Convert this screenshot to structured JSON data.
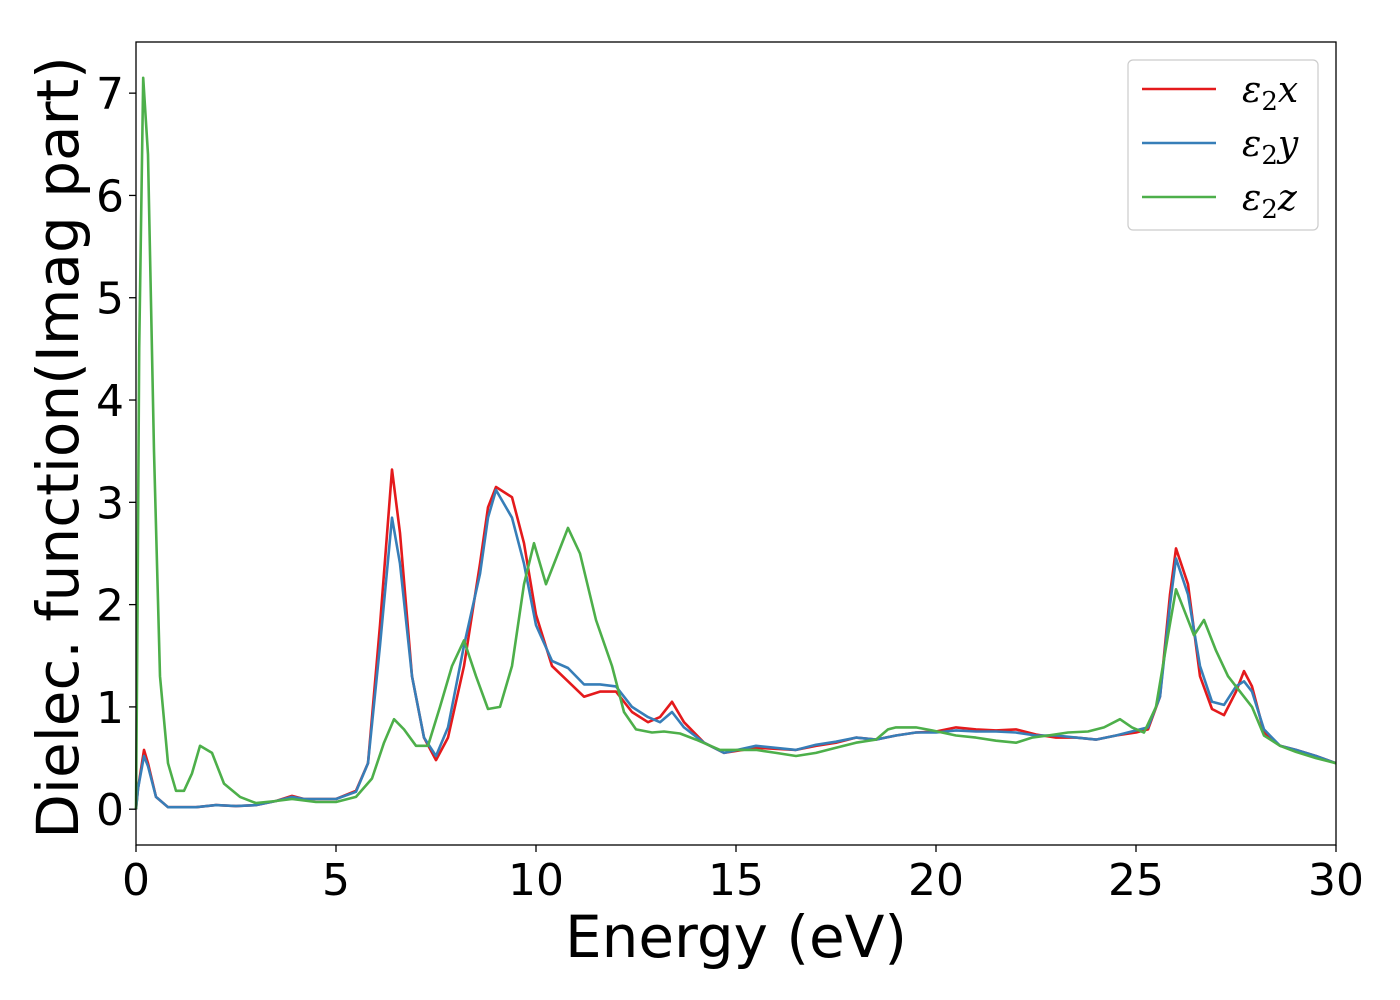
{
  "chart_data": {
    "type": "line",
    "title": "",
    "xlabel": "Energy (eV)",
    "ylabel": "Dielec. function(Imag part)",
    "xlim": [
      0,
      30
    ],
    "ylim": [
      -0.35,
      7.5
    ],
    "xticks": [
      0,
      5,
      10,
      15,
      20,
      25,
      30
    ],
    "yticks": [
      0,
      1,
      2,
      3,
      4,
      5,
      6,
      7
    ],
    "grid": false,
    "legend_position": "top-right",
    "series": [
      {
        "name": "ε₂x",
        "legend_base": "ε",
        "legend_sub": "2",
        "legend_suffix": "x",
        "color": "#e41a1c",
        "points": [
          [
            0,
            0
          ],
          [
            0.05,
            0.2
          ],
          [
            0.2,
            0.58
          ],
          [
            0.3,
            0.45
          ],
          [
            0.5,
            0.12
          ],
          [
            0.8,
            0.02
          ],
          [
            1.5,
            0.02
          ],
          [
            2,
            0.04
          ],
          [
            2.5,
            0.03
          ],
          [
            3,
            0.04
          ],
          [
            3.5,
            0.08
          ],
          [
            3.9,
            0.13
          ],
          [
            4.2,
            0.1
          ],
          [
            4.5,
            0.1
          ],
          [
            5,
            0.1
          ],
          [
            5.5,
            0.18
          ],
          [
            5.8,
            0.45
          ],
          [
            6.1,
            1.8
          ],
          [
            6.4,
            3.32
          ],
          [
            6.6,
            2.7
          ],
          [
            6.9,
            1.3
          ],
          [
            7.2,
            0.7
          ],
          [
            7.5,
            0.48
          ],
          [
            7.8,
            0.7
          ],
          [
            8.2,
            1.4
          ],
          [
            8.6,
            2.4
          ],
          [
            8.8,
            2.95
          ],
          [
            9.0,
            3.15
          ],
          [
            9.4,
            3.05
          ],
          [
            9.7,
            2.6
          ],
          [
            10.0,
            1.9
          ],
          [
            10.4,
            1.4
          ],
          [
            10.8,
            1.25
          ],
          [
            11.2,
            1.1
          ],
          [
            11.6,
            1.15
          ],
          [
            12.0,
            1.15
          ],
          [
            12.4,
            0.95
          ],
          [
            12.8,
            0.85
          ],
          [
            13.1,
            0.9
          ],
          [
            13.4,
            1.05
          ],
          [
            13.7,
            0.85
          ],
          [
            14.2,
            0.65
          ],
          [
            14.7,
            0.55
          ],
          [
            15.5,
            0.6
          ],
          [
            16.5,
            0.58
          ],
          [
            17.0,
            0.62
          ],
          [
            17.5,
            0.65
          ],
          [
            18.0,
            0.7
          ],
          [
            18.5,
            0.68
          ],
          [
            19.0,
            0.72
          ],
          [
            19.5,
            0.75
          ],
          [
            20.0,
            0.76
          ],
          [
            20.5,
            0.8
          ],
          [
            21.0,
            0.78
          ],
          [
            21.5,
            0.77
          ],
          [
            22.0,
            0.78
          ],
          [
            22.5,
            0.73
          ],
          [
            23.0,
            0.7
          ],
          [
            23.5,
            0.7
          ],
          [
            24.0,
            0.68
          ],
          [
            24.5,
            0.72
          ],
          [
            25.0,
            0.75
          ],
          [
            25.3,
            0.78
          ],
          [
            25.6,
            1.1
          ],
          [
            25.85,
            2.1
          ],
          [
            26.0,
            2.55
          ],
          [
            26.3,
            2.2
          ],
          [
            26.6,
            1.3
          ],
          [
            26.9,
            0.98
          ],
          [
            27.2,
            0.92
          ],
          [
            27.5,
            1.15
          ],
          [
            27.7,
            1.35
          ],
          [
            27.9,
            1.2
          ],
          [
            28.2,
            0.75
          ],
          [
            28.6,
            0.62
          ],
          [
            29.0,
            0.58
          ],
          [
            29.5,
            0.52
          ],
          [
            30.0,
            0.45
          ]
        ]
      },
      {
        "name": "ε₂y",
        "legend_base": "ε",
        "legend_sub": "2",
        "legend_suffix": "y",
        "color": "#377eb8",
        "points": [
          [
            0,
            0
          ],
          [
            0.05,
            0.2
          ],
          [
            0.2,
            0.52
          ],
          [
            0.3,
            0.42
          ],
          [
            0.5,
            0.12
          ],
          [
            0.8,
            0.02
          ],
          [
            1.5,
            0.02
          ],
          [
            2,
            0.04
          ],
          [
            2.5,
            0.03
          ],
          [
            3,
            0.04
          ],
          [
            3.5,
            0.08
          ],
          [
            3.9,
            0.12
          ],
          [
            4.2,
            0.1
          ],
          [
            4.5,
            0.1
          ],
          [
            5,
            0.1
          ],
          [
            5.5,
            0.17
          ],
          [
            5.8,
            0.45
          ],
          [
            6.1,
            1.6
          ],
          [
            6.4,
            2.85
          ],
          [
            6.6,
            2.4
          ],
          [
            6.9,
            1.3
          ],
          [
            7.2,
            0.7
          ],
          [
            7.5,
            0.52
          ],
          [
            7.8,
            0.8
          ],
          [
            8.2,
            1.6
          ],
          [
            8.6,
            2.3
          ],
          [
            8.8,
            2.85
          ],
          [
            9.0,
            3.12
          ],
          [
            9.4,
            2.85
          ],
          [
            9.7,
            2.4
          ],
          [
            10.0,
            1.8
          ],
          [
            10.4,
            1.45
          ],
          [
            10.8,
            1.38
          ],
          [
            11.2,
            1.22
          ],
          [
            11.6,
            1.22
          ],
          [
            12.0,
            1.2
          ],
          [
            12.4,
            1.0
          ],
          [
            12.8,
            0.9
          ],
          [
            13.1,
            0.85
          ],
          [
            13.4,
            0.95
          ],
          [
            13.7,
            0.8
          ],
          [
            14.2,
            0.65
          ],
          [
            14.7,
            0.55
          ],
          [
            15.5,
            0.62
          ],
          [
            16.5,
            0.58
          ],
          [
            17.0,
            0.63
          ],
          [
            17.5,
            0.66
          ],
          [
            18.0,
            0.7
          ],
          [
            18.5,
            0.68
          ],
          [
            19.0,
            0.72
          ],
          [
            19.5,
            0.75
          ],
          [
            20.0,
            0.75
          ],
          [
            20.5,
            0.77
          ],
          [
            21.0,
            0.76
          ],
          [
            21.5,
            0.76
          ],
          [
            22.0,
            0.75
          ],
          [
            22.5,
            0.72
          ],
          [
            23.0,
            0.72
          ],
          [
            23.5,
            0.7
          ],
          [
            24.0,
            0.68
          ],
          [
            24.5,
            0.72
          ],
          [
            25.0,
            0.77
          ],
          [
            25.3,
            0.8
          ],
          [
            25.6,
            1.1
          ],
          [
            25.85,
            2.0
          ],
          [
            26.0,
            2.45
          ],
          [
            26.3,
            2.1
          ],
          [
            26.6,
            1.4
          ],
          [
            26.9,
            1.05
          ],
          [
            27.2,
            1.02
          ],
          [
            27.5,
            1.2
          ],
          [
            27.7,
            1.25
          ],
          [
            27.9,
            1.15
          ],
          [
            28.2,
            0.78
          ],
          [
            28.6,
            0.62
          ],
          [
            29.0,
            0.58
          ],
          [
            29.5,
            0.52
          ],
          [
            30.0,
            0.45
          ]
        ]
      },
      {
        "name": "ε₂z",
        "legend_base": "ε",
        "legend_sub": "2",
        "legend_suffix": "z",
        "color": "#4daf4a",
        "points": [
          [
            0,
            0
          ],
          [
            0.03,
            1.5
          ],
          [
            0.08,
            4.5
          ],
          [
            0.18,
            7.15
          ],
          [
            0.3,
            6.4
          ],
          [
            0.45,
            3.5
          ],
          [
            0.6,
            1.3
          ],
          [
            0.8,
            0.45
          ],
          [
            1.0,
            0.18
          ],
          [
            1.2,
            0.18
          ],
          [
            1.4,
            0.35
          ],
          [
            1.6,
            0.62
          ],
          [
            1.9,
            0.55
          ],
          [
            2.2,
            0.25
          ],
          [
            2.6,
            0.12
          ],
          [
            3.0,
            0.06
          ],
          [
            3.5,
            0.08
          ],
          [
            3.9,
            0.1
          ],
          [
            4.5,
            0.07
          ],
          [
            5.0,
            0.07
          ],
          [
            5.5,
            0.12
          ],
          [
            5.9,
            0.3
          ],
          [
            6.2,
            0.65
          ],
          [
            6.45,
            0.88
          ],
          [
            6.7,
            0.78
          ],
          [
            7.0,
            0.62
          ],
          [
            7.3,
            0.62
          ],
          [
            7.6,
            1.0
          ],
          [
            7.9,
            1.4
          ],
          [
            8.2,
            1.65
          ],
          [
            8.5,
            1.3
          ],
          [
            8.8,
            0.98
          ],
          [
            9.1,
            1.0
          ],
          [
            9.4,
            1.4
          ],
          [
            9.7,
            2.2
          ],
          [
            9.95,
            2.6
          ],
          [
            10.25,
            2.2
          ],
          [
            10.5,
            2.45
          ],
          [
            10.8,
            2.75
          ],
          [
            11.1,
            2.5
          ],
          [
            11.5,
            1.85
          ],
          [
            11.9,
            1.4
          ],
          [
            12.2,
            0.95
          ],
          [
            12.5,
            0.78
          ],
          [
            12.9,
            0.75
          ],
          [
            13.2,
            0.76
          ],
          [
            13.6,
            0.74
          ],
          [
            14.0,
            0.68
          ],
          [
            14.6,
            0.58
          ],
          [
            15.0,
            0.58
          ],
          [
            15.5,
            0.58
          ],
          [
            16.0,
            0.55
          ],
          [
            16.5,
            0.52
          ],
          [
            17.0,
            0.55
          ],
          [
            17.5,
            0.6
          ],
          [
            18.0,
            0.65
          ],
          [
            18.5,
            0.68
          ],
          [
            18.8,
            0.78
          ],
          [
            19.0,
            0.8
          ],
          [
            19.5,
            0.8
          ],
          [
            19.9,
            0.77
          ],
          [
            20.5,
            0.72
          ],
          [
            21.0,
            0.7
          ],
          [
            21.5,
            0.67
          ],
          [
            22.0,
            0.65
          ],
          [
            22.4,
            0.7
          ],
          [
            22.8,
            0.72
          ],
          [
            23.3,
            0.75
          ],
          [
            23.8,
            0.76
          ],
          [
            24.2,
            0.8
          ],
          [
            24.6,
            0.88
          ],
          [
            24.9,
            0.8
          ],
          [
            25.2,
            0.75
          ],
          [
            25.5,
            1.0
          ],
          [
            25.8,
            1.7
          ],
          [
            26.0,
            2.15
          ],
          [
            26.2,
            1.95
          ],
          [
            26.45,
            1.7
          ],
          [
            26.7,
            1.85
          ],
          [
            27.0,
            1.55
          ],
          [
            27.3,
            1.3
          ],
          [
            27.6,
            1.15
          ],
          [
            27.9,
            1.0
          ],
          [
            28.2,
            0.72
          ],
          [
            28.6,
            0.62
          ],
          [
            29.0,
            0.56
          ],
          [
            29.5,
            0.5
          ],
          [
            30.0,
            0.45
          ]
        ]
      }
    ]
  }
}
